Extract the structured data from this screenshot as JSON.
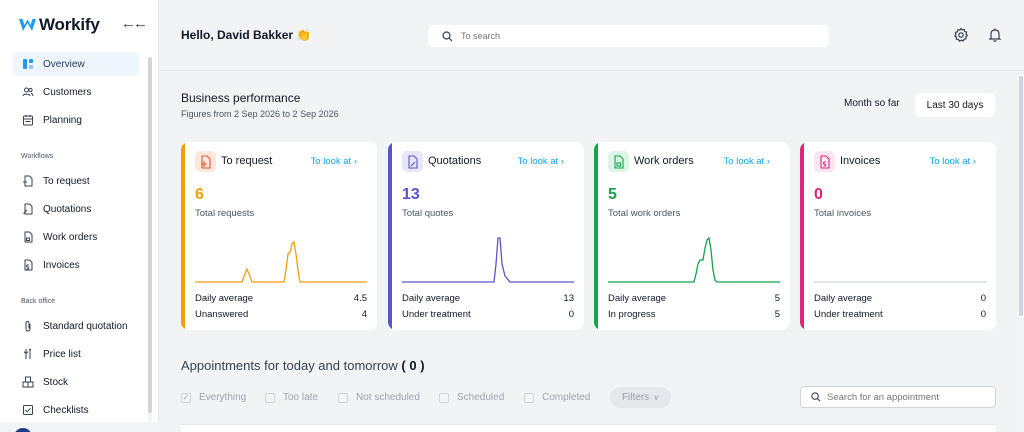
{
  "app": {
    "name": "Workify",
    "collapse_icon": "double-arrow-left-icon",
    "brand_color": "#1d9bf0"
  },
  "sidebar": {
    "items": [
      {
        "label": "Overview",
        "icon": "overview-icon",
        "active": true
      },
      {
        "label": "Customers",
        "icon": "users-icon"
      },
      {
        "label": "Planning",
        "icon": "calendar-icon"
      }
    ],
    "workflows_label": "Workflows",
    "workflows": [
      {
        "label": "To request",
        "icon": "doc-plus-icon"
      },
      {
        "label": "Quotations",
        "icon": "doc-pen-icon"
      },
      {
        "label": "Work orders",
        "icon": "doc-lock-icon"
      },
      {
        "label": "Invoices",
        "icon": "doc-dollar-icon"
      }
    ],
    "backoffice_label": "Back office",
    "backoffice": [
      {
        "label": "Standard quotation",
        "icon": "paperclip-icon"
      },
      {
        "label": "Price list",
        "icon": "tools-icon"
      },
      {
        "label": "Stock",
        "icon": "boxes-icon"
      },
      {
        "label": "Checklists",
        "icon": "checkbox-icon"
      }
    ]
  },
  "header": {
    "greeting": "Hello, David Bakker 👏",
    "search_placeholder": "To search",
    "settings_icon": "gear-icon",
    "notifications_icon": "bell-icon"
  },
  "business": {
    "title": "Business performance",
    "subtitle": "Figures from 2 Sep 2026 to 2 Sep 2026",
    "period_label": "Month so far",
    "period_button": "Last 30 days"
  },
  "cards": [
    {
      "name": "To request",
      "link": "To look at ›",
      "value": "6",
      "caption": "Total requests",
      "color": "#f59e0b",
      "icon_bg": "#fde8dd",
      "row1_label": "Daily average",
      "row1_value": "4.5",
      "row2_label": "Unanswered",
      "row2_value": "4"
    },
    {
      "name": "Quotations",
      "link": "To look at ›",
      "value": "13",
      "caption": "Total quotes",
      "color": "#5b54c9",
      "icon_bg": "#e8e6fb",
      "row1_label": "Daily average",
      "row1_value": "13",
      "row2_label": "Under treatment",
      "row2_value": "0"
    },
    {
      "name": "Work orders",
      "link": "To look at ›",
      "value": "5",
      "caption": "Total work orders",
      "color": "#16a34a",
      "icon_bg": "#dcf5e6",
      "row1_label": "Daily average",
      "row1_value": "5",
      "row2_label": "In progress",
      "row2_value": "5"
    },
    {
      "name": "Invoices",
      "link": "To look at ›",
      "value": "0",
      "caption": "Total invoices",
      "color": "#db2777",
      "icon_bg": "#fce4f1",
      "row1_label": "Daily average",
      "row1_value": "0",
      "row2_label": "Under treatment",
      "row2_value": "0"
    }
  ],
  "appointments": {
    "title": "Appointments for today and tomorrow",
    "count": "( 0 )",
    "filters": [
      {
        "label": "Everything",
        "checked": true
      },
      {
        "label": "Too late",
        "checked": false
      },
      {
        "label": "Not scheduled",
        "checked": false
      },
      {
        "label": "Scheduled",
        "checked": false
      },
      {
        "label": "Completed",
        "checked": false
      }
    ],
    "filters_button": "Filters",
    "search_placeholder": "Search for an appointment"
  }
}
